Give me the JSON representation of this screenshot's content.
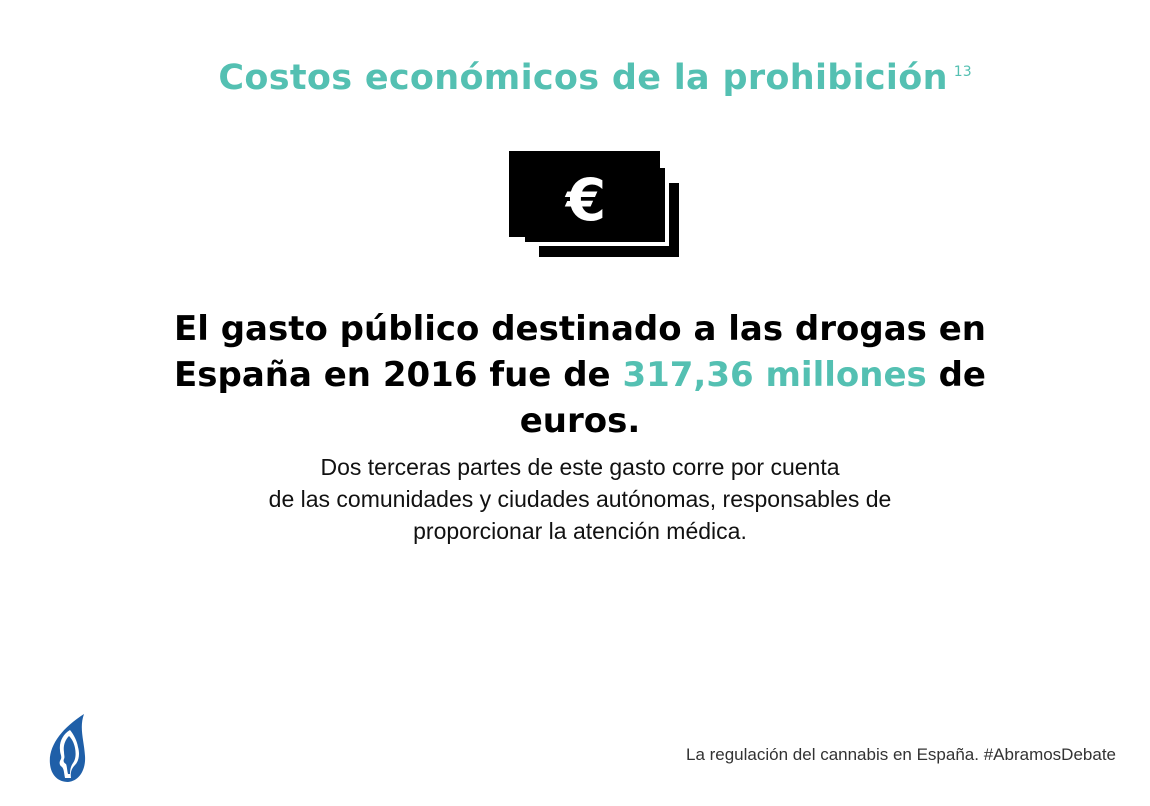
{
  "title": {
    "text": "Costos económicos de la prohibición",
    "footnote": "13"
  },
  "icon": {
    "name": "euro-banknotes-icon",
    "symbol": "€"
  },
  "headline": {
    "part1": "El gasto público destinado a las drogas en España en 2016 fue de ",
    "highlight": "317,36 millones",
    "part2": " de euros."
  },
  "body": {
    "lines": [
      "Dos terceras partes de este gasto corre por cuenta",
      "de las comunidades y ciudades autónomas, responsables de",
      "proporcionar la atención médica."
    ]
  },
  "footer": {
    "text": "La regulación del cannabis en España.  #AbramosDebate"
  },
  "logo": {
    "name": "leaf-head-logo"
  },
  "colors": {
    "accent": "#54c0b2",
    "text": "#000000",
    "logo": "#1f5fa8"
  }
}
